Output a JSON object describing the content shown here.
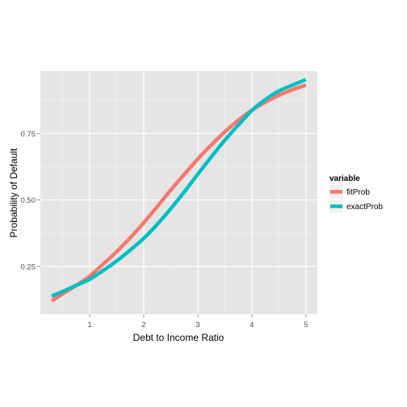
{
  "chart_data": {
    "type": "line",
    "xlabel": "Debt to Income Ratio",
    "ylabel": "Probability of Default",
    "xlim": [
      0.09,
      5.21
    ],
    "ylim": [
      0.07,
      0.985
    ],
    "x_ticks": [
      1,
      2,
      3,
      4,
      5
    ],
    "x_tick_labels": [
      "1",
      "2",
      "3",
      "4",
      "5"
    ],
    "y_ticks": [
      0.25,
      0.5,
      0.75
    ],
    "y_tick_labels": [
      "0.25",
      "0.50",
      "0.75"
    ],
    "grid": true,
    "legend_position": "right",
    "legend_title": "variable",
    "series": [
      {
        "name": "fitProb",
        "color": "#F8766D",
        "x": [
          0.3,
          0.5,
          0.75,
          1.0,
          1.25,
          1.5,
          1.75,
          2.0,
          2.25,
          2.5,
          2.75,
          3.0,
          3.25,
          3.5,
          3.75,
          4.0,
          4.25,
          4.5,
          4.75,
          5.0
        ],
        "y": [
          0.12,
          0.146,
          0.178,
          0.213,
          0.258,
          0.305,
          0.357,
          0.414,
          0.475,
          0.537,
          0.596,
          0.654,
          0.707,
          0.756,
          0.8,
          0.838,
          0.868,
          0.894,
          0.915,
          0.932
        ]
      },
      {
        "name": "exactProb",
        "color": "#00BFC4",
        "x": [
          0.3,
          0.5,
          0.75,
          1.0,
          1.25,
          1.5,
          1.75,
          2.0,
          2.25,
          2.5,
          2.75,
          3.0,
          3.25,
          3.5,
          3.75,
          4.0,
          4.25,
          4.5,
          4.75,
          5.0
        ],
        "y": [
          0.138,
          0.155,
          0.178,
          0.201,
          0.234,
          0.27,
          0.311,
          0.355,
          0.408,
          0.467,
          0.53,
          0.597,
          0.662,
          0.725,
          0.782,
          0.837,
          0.878,
          0.91,
          0.932,
          0.953
        ]
      }
    ]
  }
}
